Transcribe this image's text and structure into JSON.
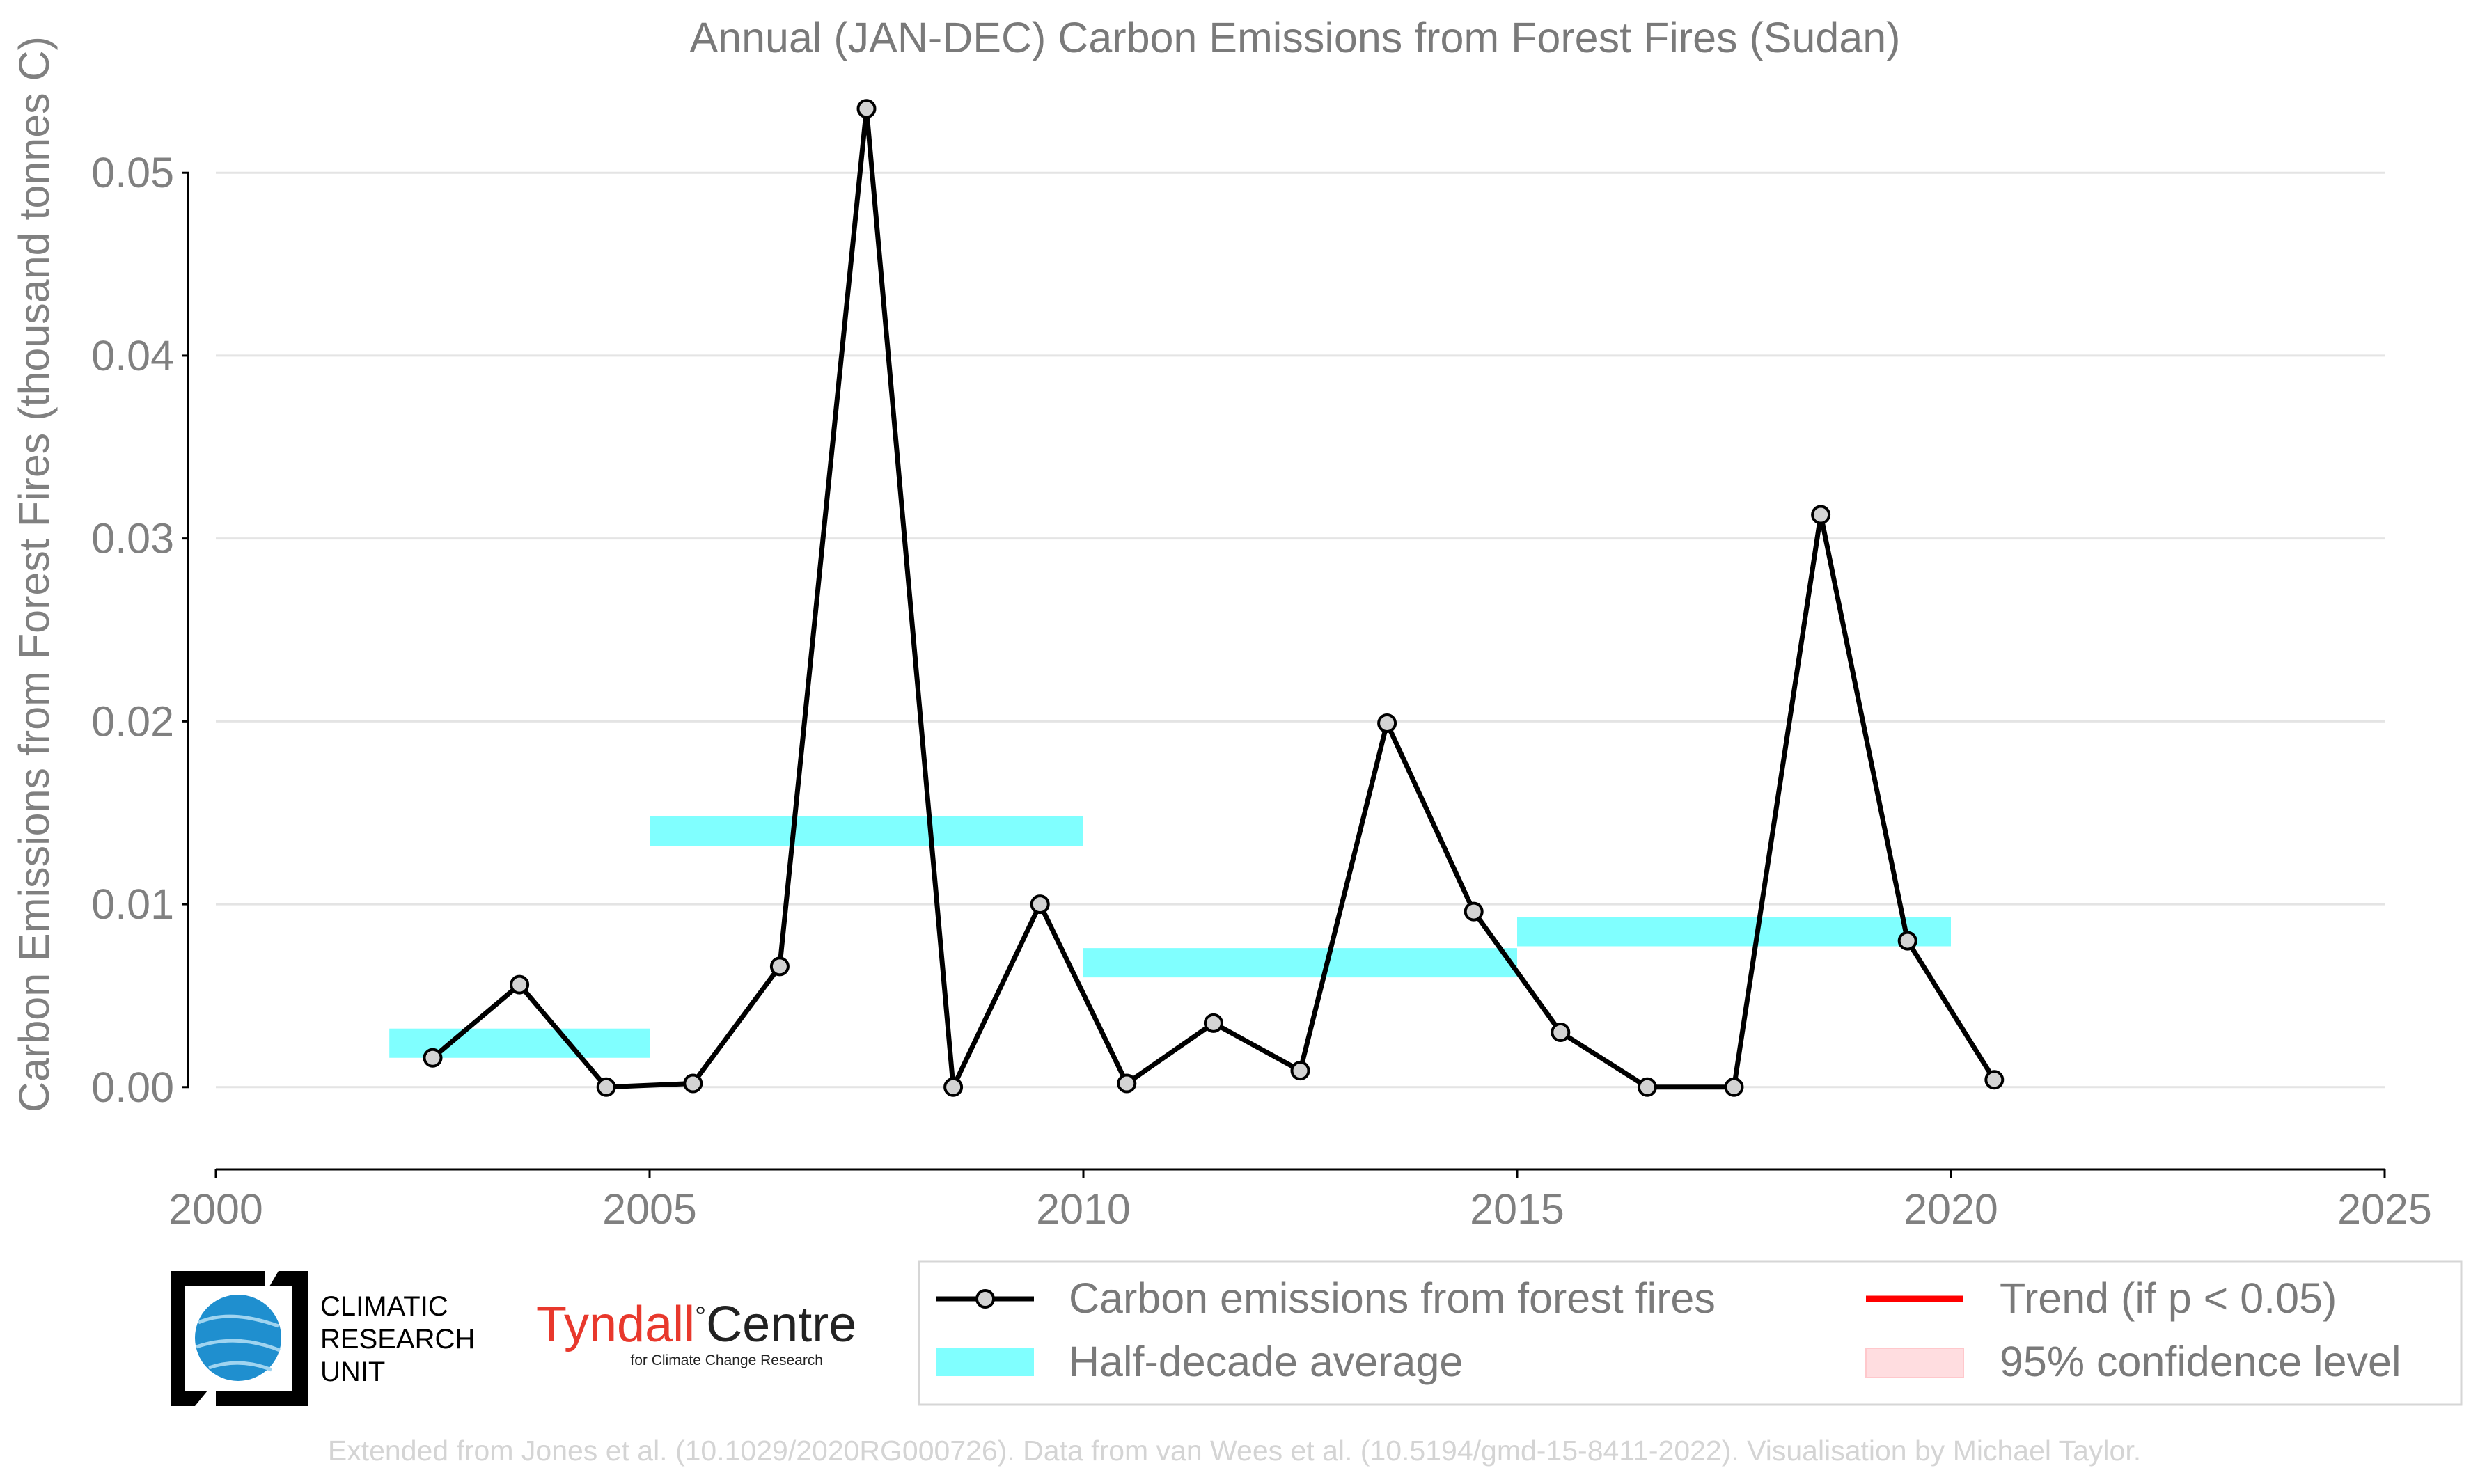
{
  "chart_data": {
    "type": "line",
    "title": "Annual (JAN-DEC) Carbon Emissions from Forest Fires (Sudan)",
    "xlabel": "",
    "ylabel": "Carbon Emissions from Forest Fires (thousand tonnes C)",
    "xlim": [
      2000,
      2025
    ],
    "ylim": [
      -0.0045,
      0.0545
    ],
    "x_ticks": [
      2000,
      2005,
      2010,
      2015,
      2020,
      2025
    ],
    "y_ticks": [
      0.0,
      0.01,
      0.02,
      0.03,
      0.04,
      0.05
    ],
    "y_tick_labels": [
      "0.00",
      "0.01",
      "0.02",
      "0.03",
      "0.04",
      "0.05"
    ],
    "grid": "horizontal",
    "series": [
      {
        "name": "Carbon emissions from forest fires",
        "color": "#000000",
        "marker_fill": "#d3d3d3",
        "x": [
          2002.5,
          2003.5,
          2004.5,
          2005.5,
          2006.5,
          2007.5,
          2008.5,
          2009.5,
          2010.5,
          2011.5,
          2012.5,
          2013.5,
          2014.5,
          2015.5,
          2016.5,
          2017.5,
          2018.5,
          2019.5,
          2020.5
        ],
        "y": [
          0.0016,
          0.0056,
          0.0,
          0.0002,
          0.0066,
          0.0535,
          0.0,
          0.01,
          0.0002,
          0.0035,
          0.0009,
          0.0199,
          0.0096,
          0.003,
          0.0,
          0.0,
          0.0313,
          0.008,
          0.0004
        ]
      }
    ],
    "half_decade_average": {
      "name": "Half-decade average",
      "color": "#80ffff",
      "bands": [
        {
          "x_start": 2002,
          "x_end": 2005,
          "value": 0.0024
        },
        {
          "x_start": 2005,
          "x_end": 2010,
          "value": 0.014
        },
        {
          "x_start": 2010,
          "x_end": 2015,
          "value": 0.0068
        },
        {
          "x_start": 2015,
          "x_end": 2020,
          "value": 0.0085
        }
      ]
    },
    "trend": {
      "name": "Trend (if p < 0.05)",
      "color": "#ff0000"
    },
    "confidence": {
      "name": "95% confidence level",
      "color": "#ffdde0"
    },
    "legend_position": "bottom-right"
  },
  "logos": {
    "cru_lines": [
      "CLIMATIC",
      "RESEARCH",
      "UNIT"
    ],
    "tyndall_name": "Tyndall",
    "tyndall_degree": "°",
    "tyndall_centre": "Centre",
    "tyndall_sub": "for Climate Change Research"
  },
  "footer": "Extended from Jones et al. (10.1029/2020RG000726). Data from van Wees et al. (10.5194/gmd-15-8411-2022). Visualisation by Michael Taylor."
}
